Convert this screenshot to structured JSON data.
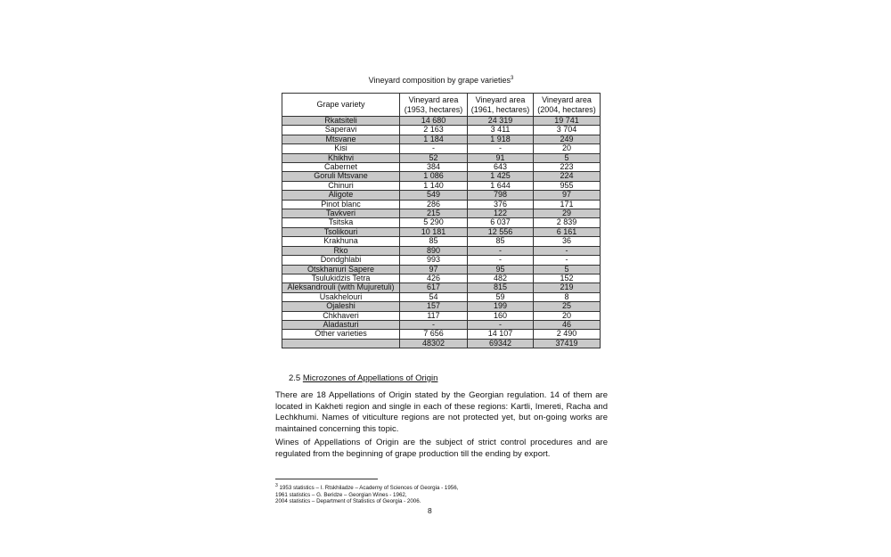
{
  "caption": {
    "text": "Vineyard composition by grape varieties",
    "footnote_ref": "3"
  },
  "table": {
    "headers": [
      "Grape variety",
      "Vineyard area (1953, hectares)",
      "Vineyard area (1961, hectares)",
      "Vineyard area (2004, hectares)"
    ],
    "rows": [
      [
        "Rkatsiteli",
        "14 680",
        "24 319",
        "19 741"
      ],
      [
        "Saperavi",
        "2 163",
        "3 411",
        "3 704"
      ],
      [
        "Mtsvane",
        "1 184",
        "1 918",
        "249"
      ],
      [
        "Kisi",
        "-",
        "-",
        "20"
      ],
      [
        "Khikhvi",
        "52",
        "91",
        "5"
      ],
      [
        "Cabernet",
        "384",
        "643",
        "223"
      ],
      [
        "Goruli Mtsvane",
        "1 086",
        "1 425",
        "224"
      ],
      [
        "Chinuri",
        "1 140",
        "1 644",
        "955"
      ],
      [
        "Aligote",
        "549",
        "798",
        "97"
      ],
      [
        "Pinot blanc",
        "286",
        "376",
        "171"
      ],
      [
        "Tavkveri",
        "215",
        "122",
        "29"
      ],
      [
        "Tsitska",
        "5 290",
        "6 037",
        "2 839"
      ],
      [
        "Tsolikouri",
        "10 181",
        "12 556",
        "6 161"
      ],
      [
        "Krakhuna",
        "85",
        "85",
        "36"
      ],
      [
        "Rko",
        "890",
        "-",
        "-"
      ],
      [
        "Dondghlabi",
        "993",
        "-",
        "-"
      ],
      [
        "Otskhanuri Sapere",
        "97",
        "95",
        "5"
      ],
      [
        "Tsulukidzis Tetra",
        "426",
        "482",
        "152"
      ],
      [
        "Aleksandrouli (with Mujuretuli)",
        "617",
        "815",
        "219"
      ],
      [
        "Usakhelouri",
        "54",
        "59",
        "8"
      ],
      [
        "Ojaleshi",
        "157",
        "199",
        "25"
      ],
      [
        "Chkhaveri",
        "117",
        "160",
        "20"
      ],
      [
        "Aladasturi",
        "-",
        "-",
        "46"
      ],
      [
        "Other varieties",
        "7 656",
        "14 107",
        "2 490"
      ],
      [
        "",
        "48302",
        "69342",
        "37419"
      ]
    ],
    "stripe_color": "#c9c9c9"
  },
  "section": {
    "number": "2.5",
    "title": "Microzones of Appellations of Origin"
  },
  "paragraphs": [
    "There are 18 Appellations of Origin stated by the Georgian regulation. 14 of them are located in Kakheti region and single in each of these regions: Kartli, Imereti, Racha and Lechkhumi. Names of viticulture regions are not protected yet, but on-going works are maintained concerning this topic.",
    "Wines of Appellations of Origin are the subject of strict control procedures and are regulated from the beginning of grape production till the ending by export."
  ],
  "footnote": {
    "marker": "3",
    "lines": [
      "1953 statistics – I. Rtskhiladze – Academy of Sciences of Georgia - 1956,",
      "1961 statistics – G. Beridze – Georgian Wines - 1962,",
      "2004 statistics – Department of Statistics of Georgia - 2006."
    ]
  },
  "page_number": "8"
}
